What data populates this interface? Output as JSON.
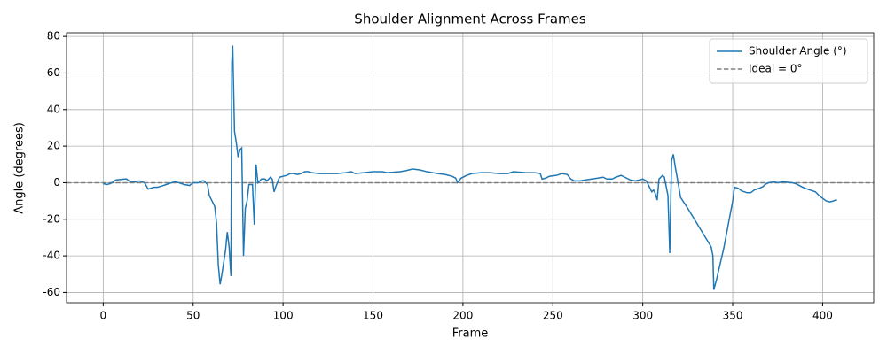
{
  "chart_data": {
    "type": "line",
    "title": "Shoulder Alignment Across Frames",
    "xlabel": "Frame",
    "ylabel": "Angle (degrees)",
    "xlim": [
      -20.4,
      428.4
    ],
    "ylim": [
      -65.6,
      82
    ],
    "xticks": [
      0,
      50,
      100,
      150,
      200,
      250,
      300,
      350,
      400
    ],
    "yticks": [
      -60,
      -40,
      -20,
      0,
      20,
      40,
      60,
      80
    ],
    "grid": true,
    "legend": "upper-right",
    "series": [
      {
        "name": "Shoulder Angle (°)",
        "color": "#1f77b4",
        "x": [
          0,
          2,
          4,
          7,
          12,
          13,
          15,
          18,
          20,
          23,
          25,
          28,
          30,
          32,
          35,
          38,
          40,
          42,
          45,
          48,
          50,
          53,
          55,
          56,
          58,
          59,
          62,
          63,
          64,
          65,
          66,
          68,
          69,
          70,
          71,
          71.5,
          72,
          73,
          74,
          75,
          76,
          77,
          78,
          79,
          80,
          81,
          83,
          84,
          85,
          86,
          87,
          88,
          89,
          90,
          91,
          92,
          93,
          94,
          95,
          96,
          98,
          100,
          102,
          104,
          106,
          108,
          110,
          112,
          114,
          116,
          120,
          130,
          135,
          138,
          140,
          145,
          150,
          155,
          158,
          165,
          168,
          170,
          172,
          176,
          180,
          186,
          190,
          194,
          196,
          197,
          199,
          202,
          205,
          210,
          215,
          220,
          225,
          228,
          235,
          240,
          243,
          244,
          246,
          248,
          252,
          255,
          258,
          260,
          262,
          265,
          268,
          275,
          278,
          280,
          283,
          285,
          288,
          290,
          293,
          296,
          298,
          300,
          302,
          304,
          305,
          306,
          307,
          308,
          309,
          311,
          312,
          313,
          314,
          315,
          316,
          317,
          318,
          320,
          321,
          323,
          325,
          338,
          339,
          339.5,
          341,
          345,
          350,
          351,
          353,
          355,
          358,
          360,
          362,
          365,
          367,
          368,
          370,
          373,
          375,
          378,
          383,
          385,
          388,
          390,
          393,
          396,
          398,
          402,
          404,
          406,
          407,
          408
        ],
        "values": [
          -0.5,
          -1,
          -0.5,
          1.5,
          2,
          2,
          0.5,
          0.5,
          1,
          0,
          -3.5,
          -2.5,
          -2.5,
          -2,
          -1,
          0,
          0.5,
          0,
          -1,
          -1.5,
          0,
          0,
          1,
          1,
          -1,
          -7,
          -13,
          -22,
          -45,
          -55.5,
          -50,
          -37,
          -27,
          -35,
          -51,
          66,
          75,
          28,
          22,
          14,
          18,
          19,
          -40,
          -14,
          -10,
          -1,
          -1,
          -23,
          10,
          0,
          1,
          2,
          2,
          2,
          1,
          2,
          3,
          2,
          -5,
          -2,
          3,
          3.5,
          4,
          5,
          5,
          4.5,
          5,
          6,
          6,
          5.5,
          5,
          5,
          5.5,
          6,
          5,
          5.5,
          6,
          6,
          5.5,
          6,
          6.5,
          7,
          7.5,
          7,
          6,
          5,
          4.5,
          3.5,
          2.5,
          0,
          2.5,
          4,
          5,
          5.5,
          5.5,
          5,
          5,
          6,
          5.5,
          5.5,
          5,
          2,
          2.5,
          3.5,
          4,
          5,
          4.5,
          2,
          1,
          1,
          1.5,
          2.5,
          3,
          2,
          2,
          3,
          4,
          3,
          1.5,
          1,
          1.5,
          2,
          1,
          -3,
          -5,
          -4,
          -6,
          -9.5,
          2,
          4,
          3,
          -2,
          -7,
          -38.5,
          12,
          15.5,
          9,
          -2,
          -8,
          -11,
          -14,
          -35,
          -40,
          -58.5,
          -53,
          -36,
          -10,
          -2.5,
          -3,
          -4.5,
          -5.5,
          -5.5,
          -4,
          -3,
          -2,
          -1,
          0,
          0.5,
          0,
          0.5,
          0,
          -0.5,
          -2,
          -3,
          -4,
          -5,
          -7,
          -10,
          -10.5,
          -10,
          -9.5,
          -9.5
        ]
      }
    ],
    "hlines": [
      {
        "name": "Ideal = 0°",
        "value": 0,
        "color": "#808080",
        "style": "dashed"
      }
    ]
  }
}
